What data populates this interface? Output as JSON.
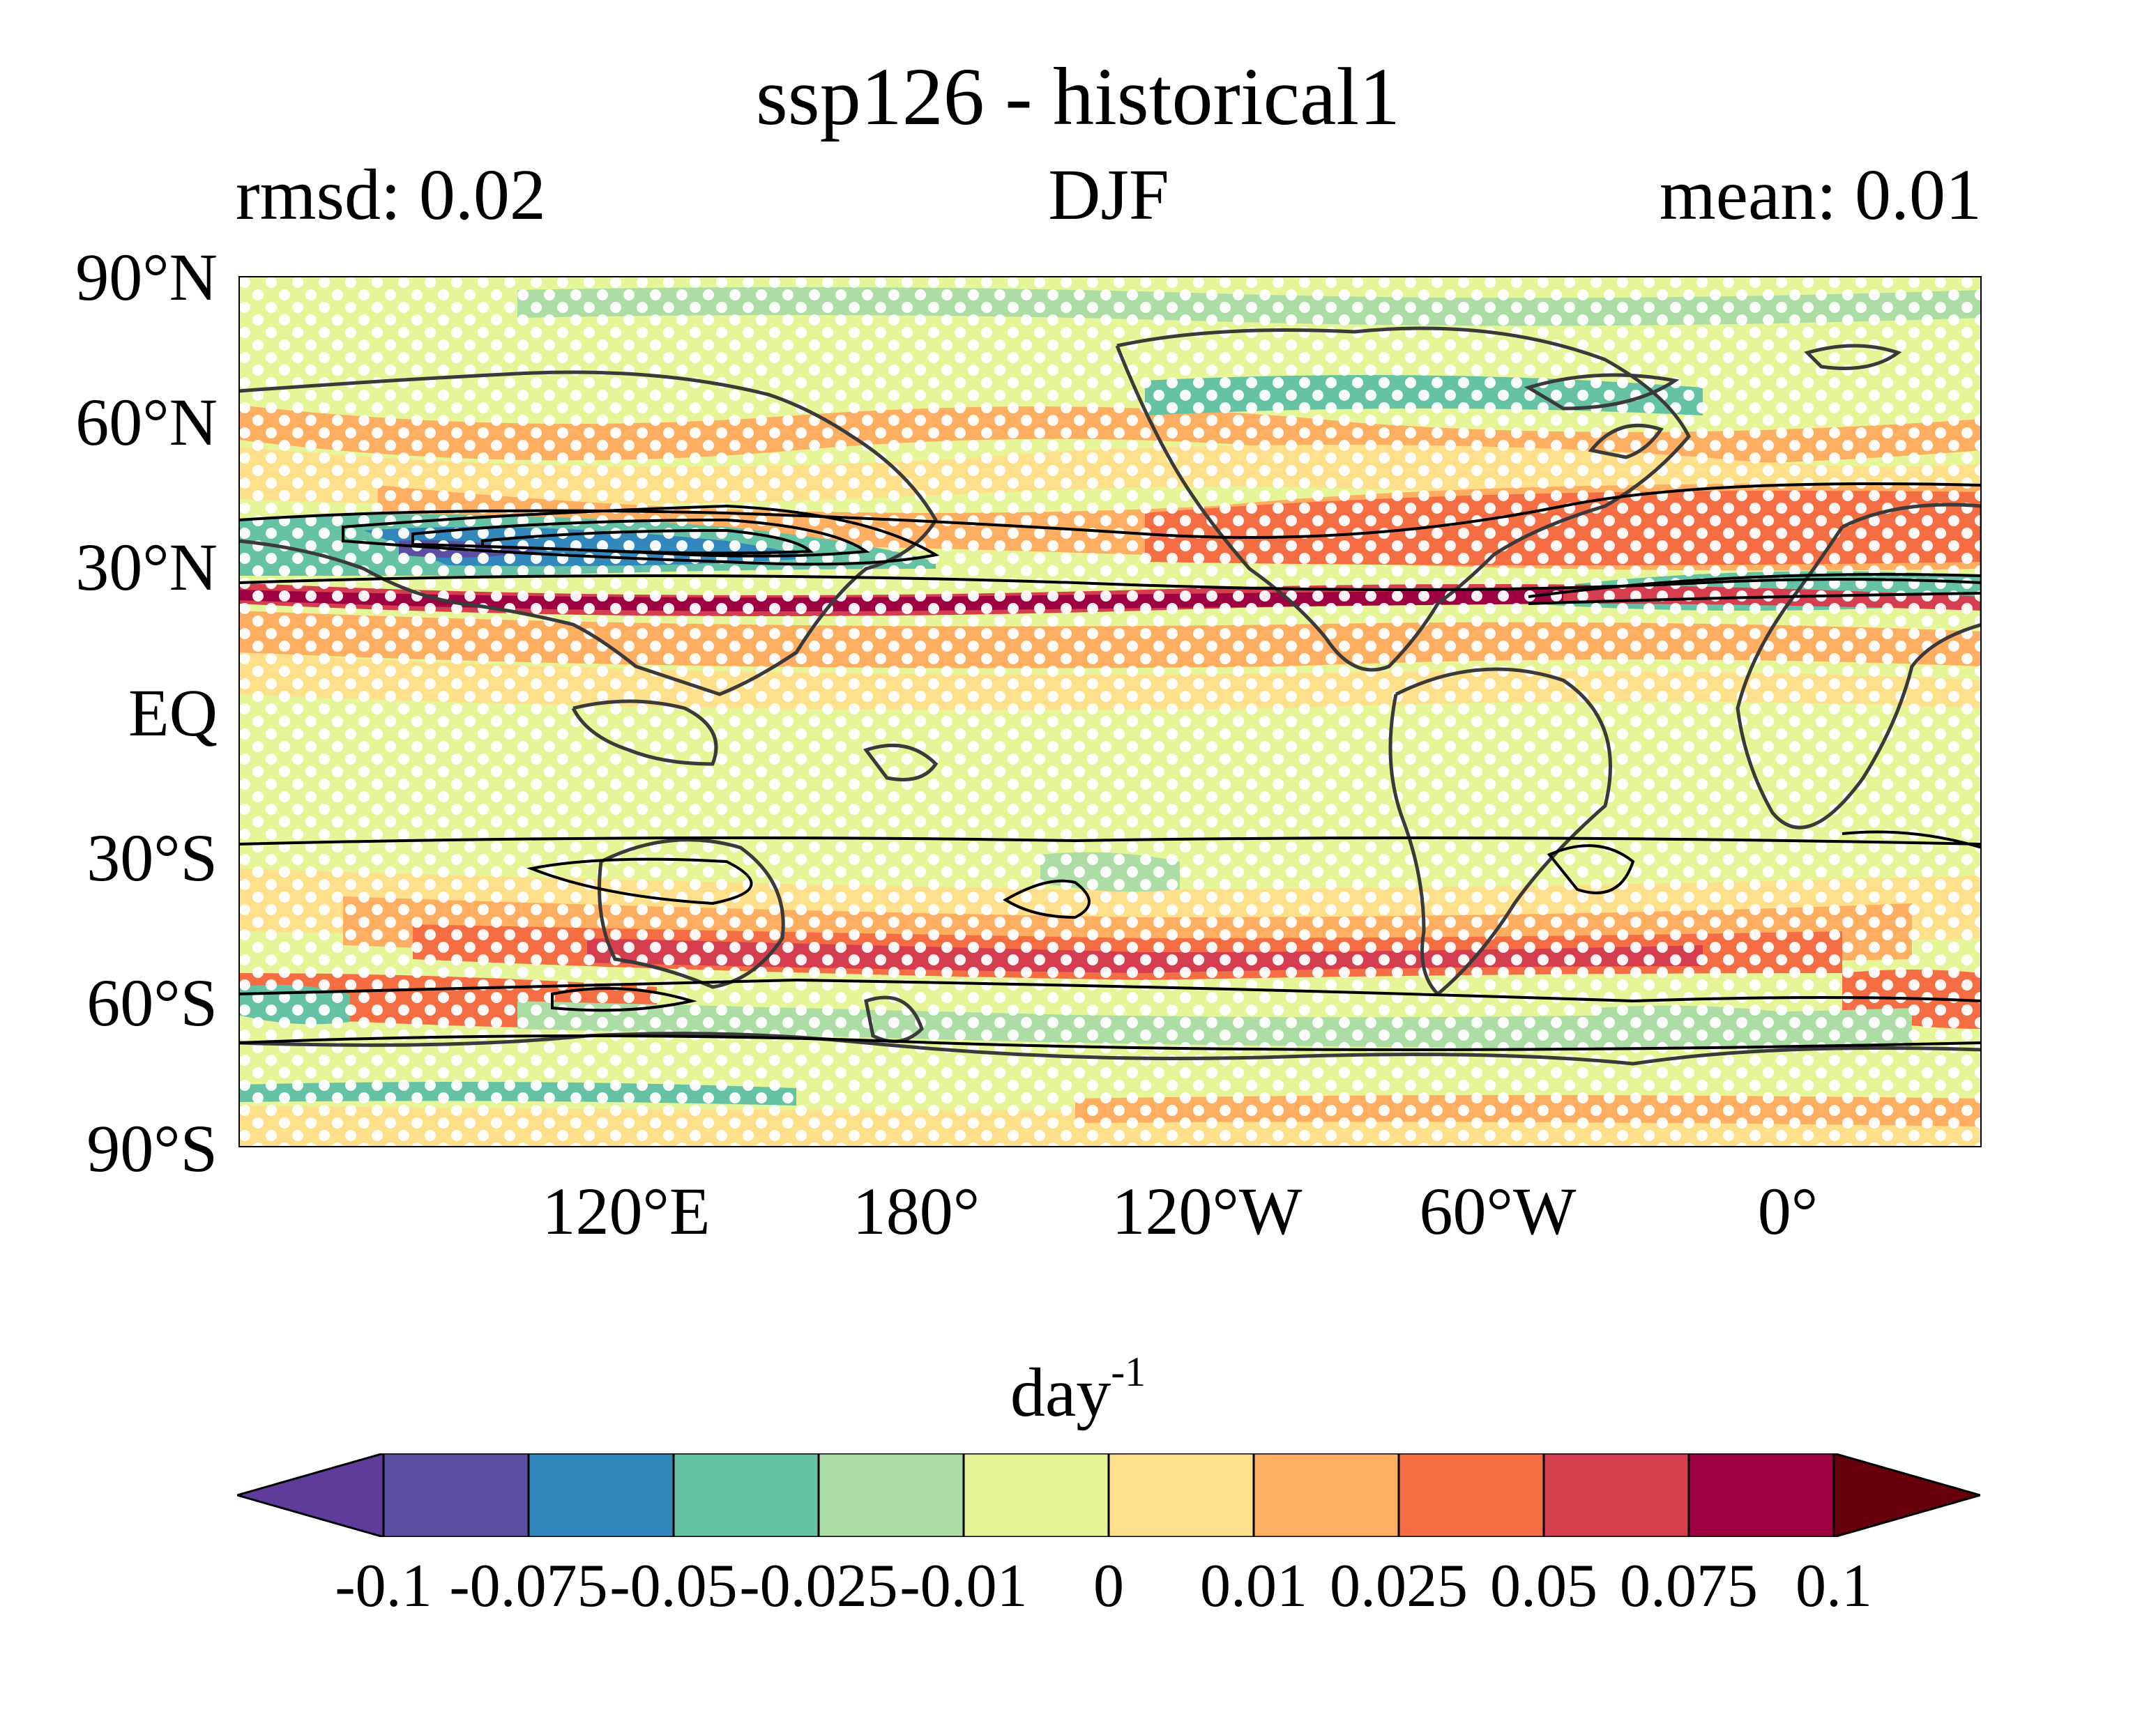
{
  "title": "ssp126 - historical1",
  "subtitle_left": "rmsd: 0.02",
  "subtitle_center": "DJF",
  "subtitle_right": "mean: 0.01",
  "lat_labels": [
    "90°N",
    "60°N",
    "30°N",
    "EQ",
    "30°S",
    "60°S",
    "90°S"
  ],
  "lon_labels": [
    "120°E",
    "180°",
    "120°W",
    "60°W",
    "0°"
  ],
  "units_base": "day",
  "units_exp": "-1",
  "colorbar": {
    "labels": [
      "-0.1",
      "-0.075",
      "-0.05",
      "-0.025",
      "-0.01",
      "0",
      "0.01",
      "0.025",
      "0.05",
      "0.075",
      "0.1"
    ],
    "colors": [
      "#5e3c99",
      "#5b4fa3",
      "#3288bd",
      "#66c2a5",
      "#abdda4",
      "#e6f598",
      "#fee08b",
      "#fdae61",
      "#f46d43",
      "#d53e4f",
      "#9e0142",
      "#67000d"
    ]
  },
  "map": {
    "lon_range": [
      60,
      420
    ],
    "lat_range": [
      -90,
      90
    ],
    "background_color": "#e6f598",
    "stippling_color": "#ffffff",
    "coastline_color": "#3a3a3a",
    "contour_color": "#000000"
  }
}
